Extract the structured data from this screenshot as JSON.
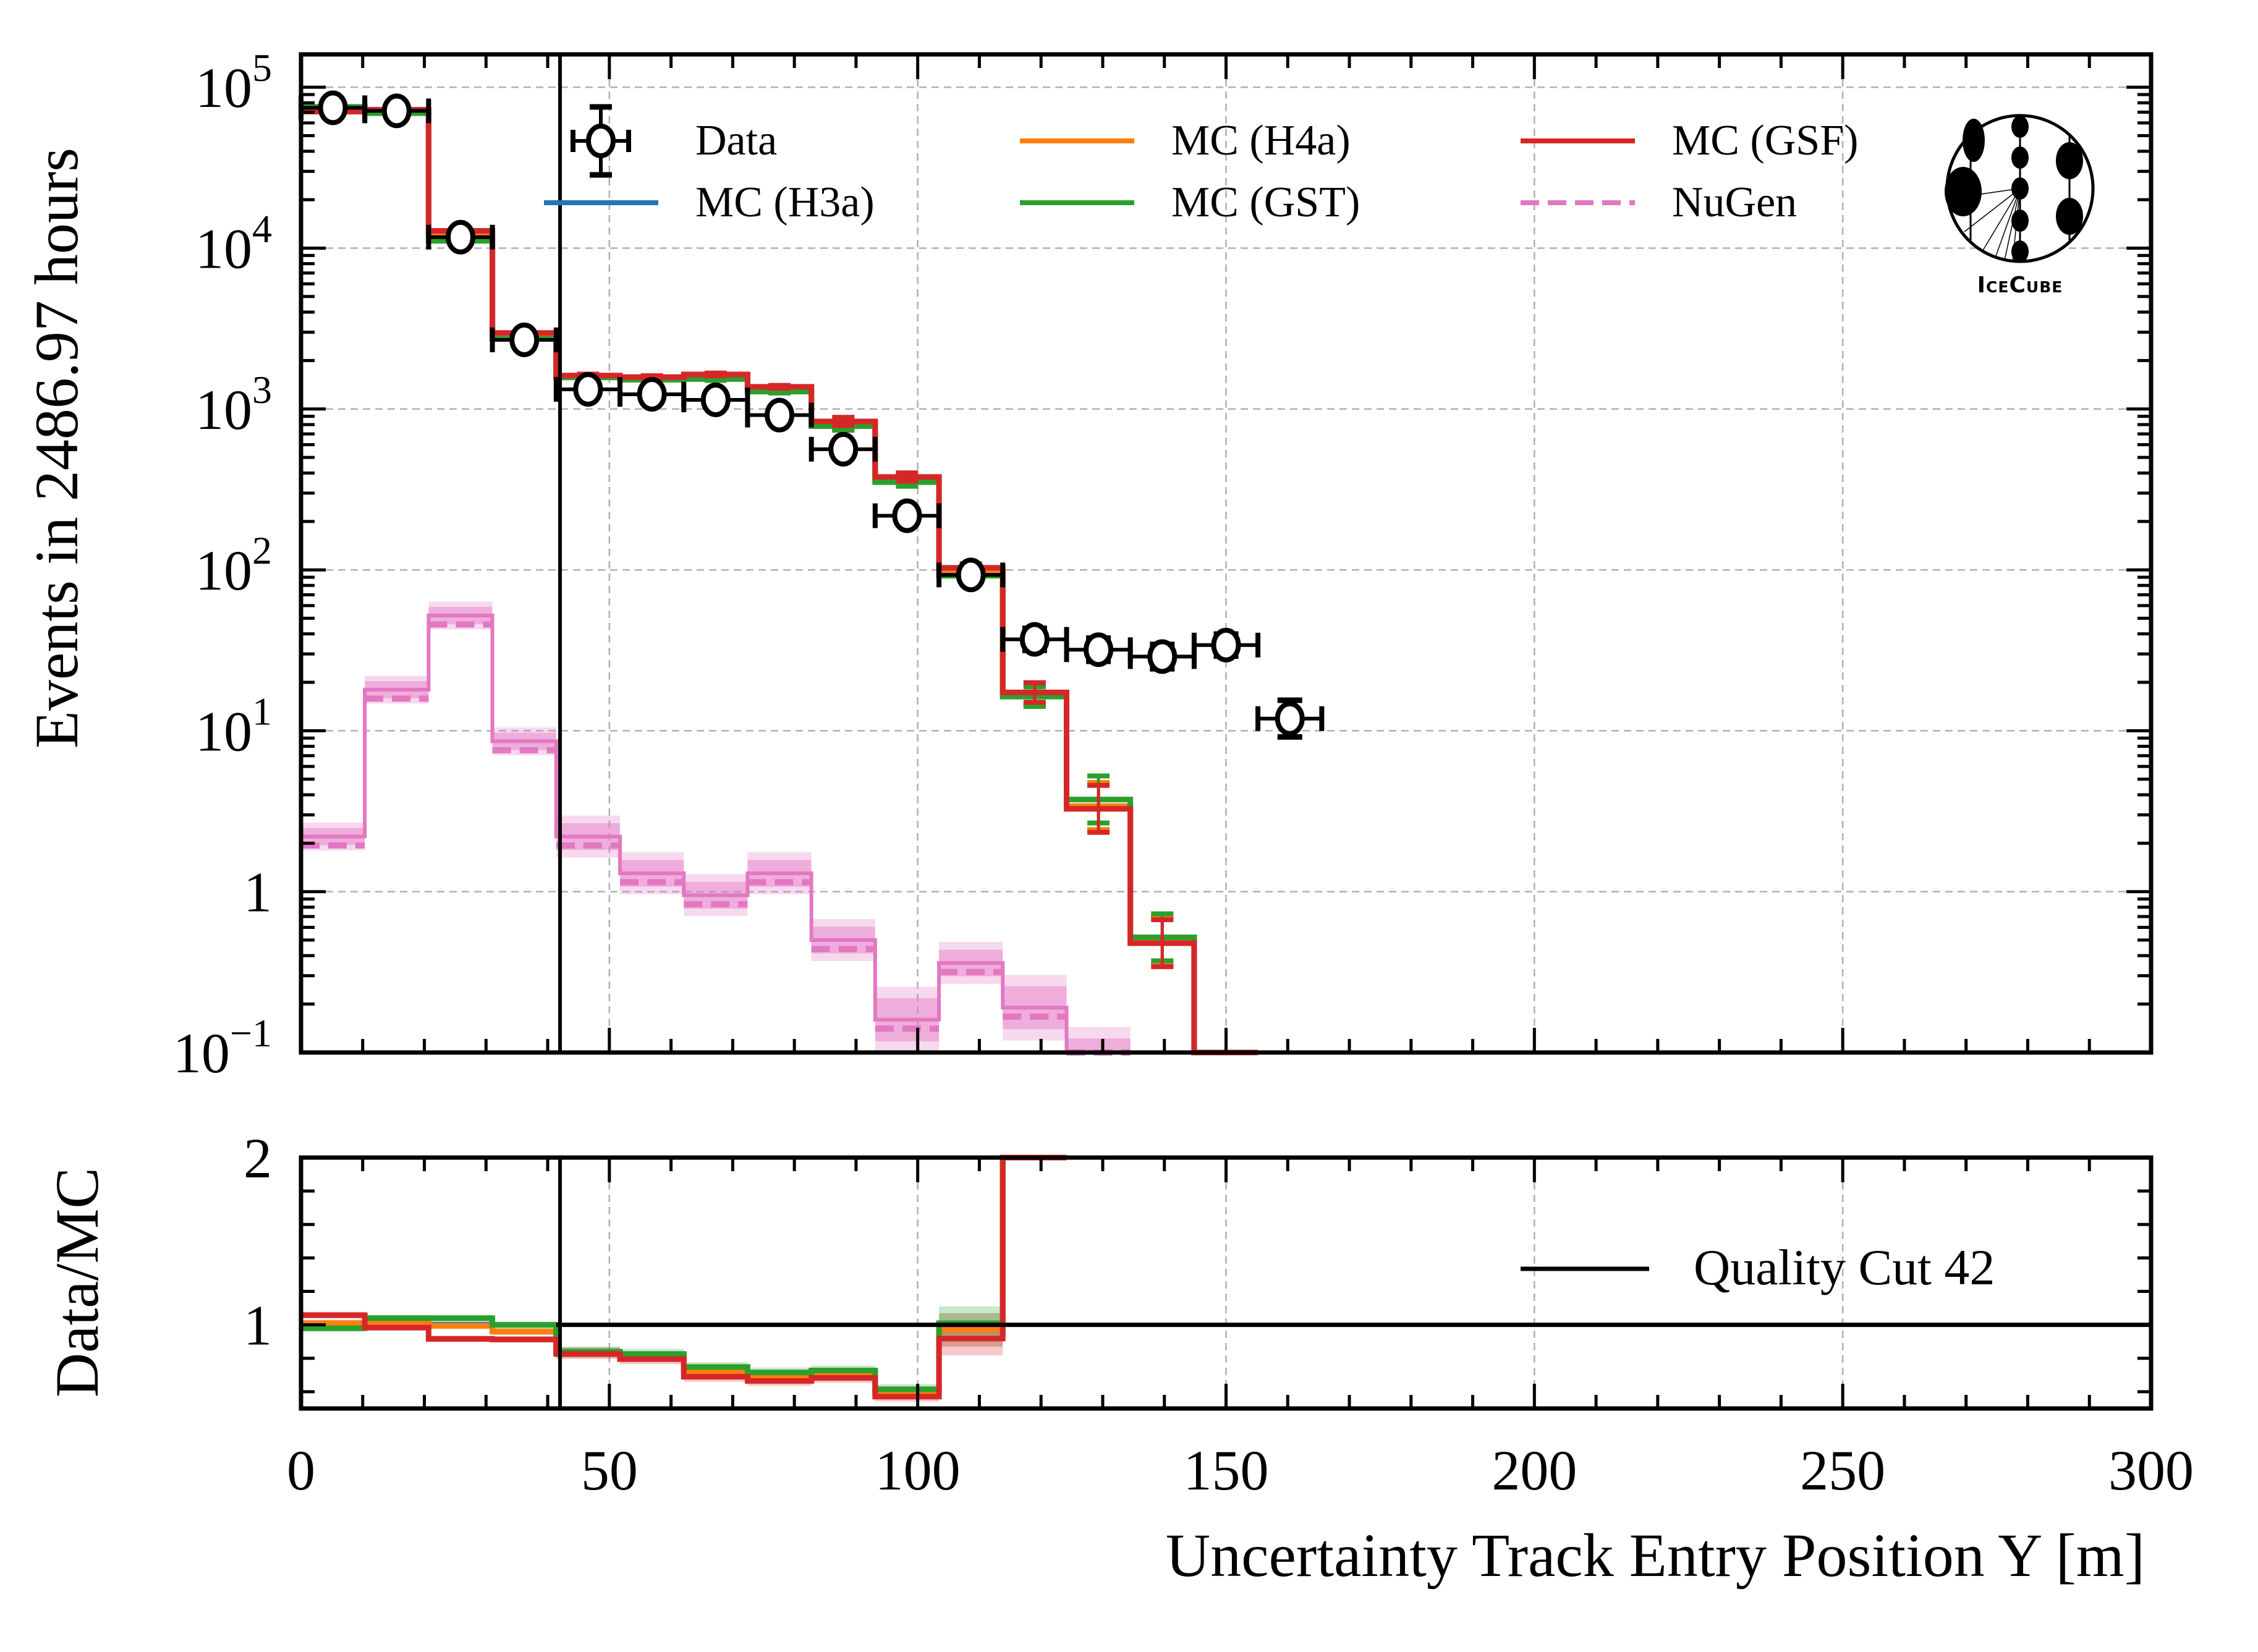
{
  "chart_data": [
    {
      "type": "line",
      "panel": "main",
      "title": "",
      "xlabel": "",
      "ylabel": "Events in 2486.97 hours",
      "yscale": "log",
      "xlim": [
        0,
        300
      ],
      "ylim": [
        0.1,
        160000
      ],
      "grid": true,
      "y_tick_labels": [
        {
          "value": 100000,
          "base": "10",
          "exp": "5"
        },
        {
          "value": 10000,
          "base": "10",
          "exp": "4"
        },
        {
          "value": 1000,
          "base": "10",
          "exp": "3"
        },
        {
          "value": 100,
          "base": "10",
          "exp": "2"
        },
        {
          "value": 10,
          "base": "10",
          "exp": "1"
        },
        {
          "value": 1,
          "base": "1",
          "exp": ""
        },
        {
          "value": 0.1,
          "base": "10",
          "exp": "−1"
        }
      ],
      "bin_edges": [
        0,
        10.34,
        20.69,
        31.03,
        41.38,
        51.72,
        62.07,
        72.41,
        82.76,
        93.1,
        103.45,
        113.79,
        124.14,
        134.48,
        144.83,
        155.17,
        165.52
      ],
      "vertical_line": {
        "x": 42,
        "label": "Quality Cut 42",
        "color": "#000000"
      },
      "legend_position": "top",
      "series": [
        {
          "name": "Data",
          "kind": "points",
          "color": "#000000",
          "values": [
            74500,
            71300,
            11700,
            2690,
            1325,
            1234,
            1140,
            916,
            562,
            217,
            93,
            37,
            31.9,
            28.9,
            34.1,
            11.9
          ],
          "yerr_rel": [
            0.004,
            0.004,
            0.009,
            0.02,
            0.03,
            0.03,
            0.03,
            0.035,
            0.045,
            0.07,
            0.1,
            0.17,
            0.18,
            0.19,
            0.17,
            0.3
          ]
        },
        {
          "name": "MC (H3a)",
          "kind": "step",
          "color": "#1f77b4",
          "values": [
            72000,
            70500,
            11900,
            2850,
            1580,
            1540,
            1590,
            1320,
            805,
            362,
            96,
            16.6,
            3.4,
            0.5,
            0.05
          ]
        },
        {
          "name": "MC (H4a)",
          "kind": "step",
          "color": "#ff7f0e",
          "values": [
            72500,
            70800,
            12000,
            2850,
            1590,
            1545,
            1600,
            1330,
            810,
            365,
            97,
            16.7,
            3.4,
            0.49,
            0.05
          ]
        },
        {
          "name": "MC (GST)",
          "kind": "step",
          "color": "#2ca02c",
          "values": [
            75500,
            69000,
            11100,
            2730,
            1570,
            1520,
            1535,
            1283,
            782,
            351,
            92,
            16.3,
            3.74,
            0.52,
            0.05
          ]
        },
        {
          "name": "MC (GSF)",
          "kind": "step",
          "color": "#d62728",
          "values": [
            70500,
            72500,
            12800,
            2970,
            1615,
            1578,
            1640,
            1373,
            837,
            378,
            103,
            17.3,
            3.27,
            0.478,
            0.05
          ]
        },
        {
          "name": "NuGen",
          "kind": "step-dashed",
          "color": "#e377c2",
          "values": [
            2.2,
            18.0,
            52,
            8.6,
            2.2,
            1.3,
            0.95,
            1.3,
            0.5,
            0.16,
            0.36,
            0.19,
            0.09
          ]
        }
      ]
    },
    {
      "type": "line",
      "panel": "ratio",
      "xlabel": "Uncertainty Track Entry Position Y [m]",
      "ylabel": "Data/MC",
      "xlim": [
        0,
        300
      ],
      "ylim": [
        0.5,
        2
      ],
      "y_tick_labels": [
        {
          "value": 2,
          "label": "2"
        },
        {
          "value": 1,
          "label": "1"
        }
      ],
      "x_tick_labels": [
        {
          "value": 0,
          "label": "0"
        },
        {
          "value": 50,
          "label": "50"
        },
        {
          "value": 100,
          "label": "100"
        },
        {
          "value": 150,
          "label": "150"
        },
        {
          "value": 200,
          "label": "200"
        },
        {
          "value": 250,
          "label": "250"
        },
        {
          "value": 300,
          "label": "300"
        }
      ],
      "reference_line": 1,
      "series": [
        {
          "name": "MC (H3a)",
          "color": "#1f77b4",
          "values": [
            1.01,
            1.01,
            1.0,
            0.96,
            0.835,
            0.81,
            0.72,
            0.69,
            0.705,
            0.59,
            0.97,
            2.2
          ]
        },
        {
          "name": "MC (H4a)",
          "color": "#ff7f0e",
          "values": [
            1.01,
            1.01,
            0.994,
            0.96,
            0.835,
            0.81,
            0.72,
            0.69,
            0.705,
            0.59,
            0.97,
            2.2
          ]
        },
        {
          "name": "MC (GST)",
          "color": "#2ca02c",
          "values": [
            0.98,
            1.04,
            1.04,
            1.0,
            0.84,
            0.826,
            0.748,
            0.715,
            0.727,
            0.615,
            1.01,
            2.3
          ]
        },
        {
          "name": "MC (GSF)",
          "color": "#d62728",
          "values": [
            1.058,
            0.984,
            0.916,
            0.913,
            0.826,
            0.795,
            0.69,
            0.665,
            0.683,
            0.571,
            0.918,
            2.15
          ]
        }
      ]
    }
  ],
  "legend": {
    "entries": [
      {
        "label": "Data",
        "icon": "errorbar-circle-icon",
        "color": "#000000"
      },
      {
        "label": "MC (H3a)",
        "icon": "line-icon",
        "color": "#1f77b4"
      },
      {
        "label": "MC (H4a)",
        "icon": "line-icon",
        "color": "#ff7f0e"
      },
      {
        "label": "MC (GST)",
        "icon": "line-icon",
        "color": "#2ca02c"
      },
      {
        "label": "MC (GSF)",
        "icon": "line-icon",
        "color": "#d62728"
      },
      {
        "label": "NuGen",
        "icon": "dashed-line-icon",
        "color": "#e377c2"
      }
    ],
    "ratio_entry": {
      "label": "Quality Cut 42",
      "color": "#000000"
    }
  },
  "logo": {
    "text": "IceCube",
    "icon": "icecube-logo-icon"
  }
}
